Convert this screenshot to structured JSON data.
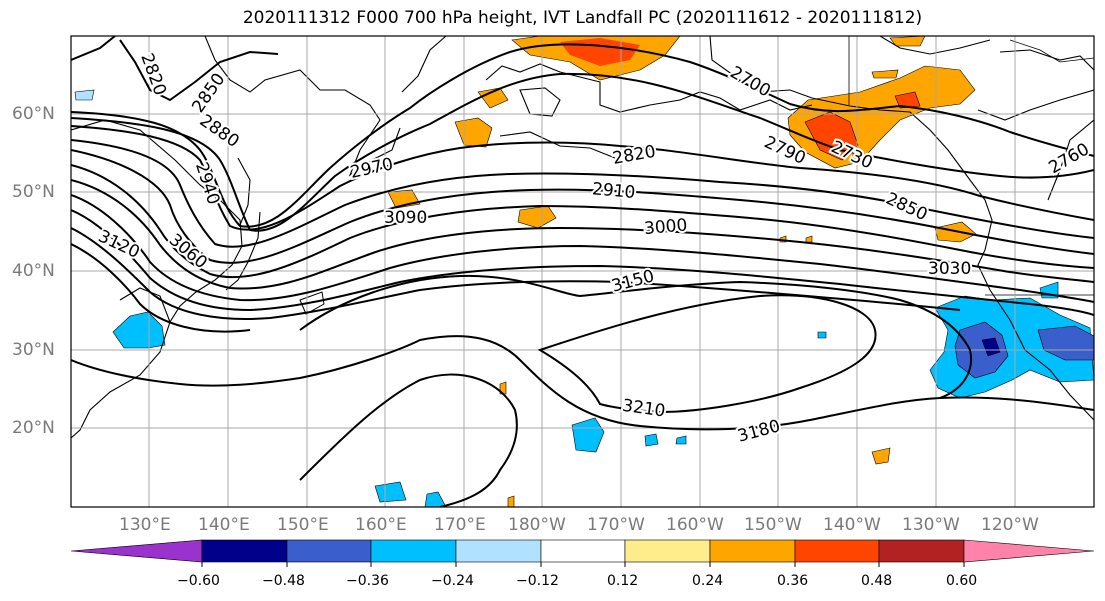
{
  "title": "2020111312 F000 700 hPa height, IVT Landfall PC (2020111612 - 2020111812)",
  "lat_labels": [
    "60°N",
    "50°N",
    "40°N",
    "30°N",
    "20°N"
  ],
  "lon_labels": [
    "130°E",
    "140°E",
    "150°E",
    "160°E",
    "170°E",
    "180°W",
    "170°W",
    "160°W",
    "150°W",
    "140°W",
    "130°W",
    "120°W"
  ],
  "contour_labels": [
    "2820",
    "2850",
    "2880",
    "2940",
    "2970",
    "3090",
    "3120",
    "3060",
    "2820",
    "2910",
    "3000",
    "3150",
    "2700",
    "2790",
    "2730",
    "2850",
    "2760",
    "3030",
    "3210",
    "3180"
  ],
  "colorbar": {
    "ticks": [
      "−0.60",
      "−0.48",
      "−0.36",
      "−0.24",
      "−0.12",
      "0.12",
      "0.24",
      "0.36",
      "0.48",
      "0.60"
    ],
    "colors": [
      "#9a32cd",
      "#00008b",
      "#3a5fcd",
      "#00bfff",
      "#b0e2ff",
      "#ffffff",
      "#ffec8b",
      "#ffa500",
      "#ff4500",
      "#b22222",
      "#ff82ab"
    ]
  }
}
